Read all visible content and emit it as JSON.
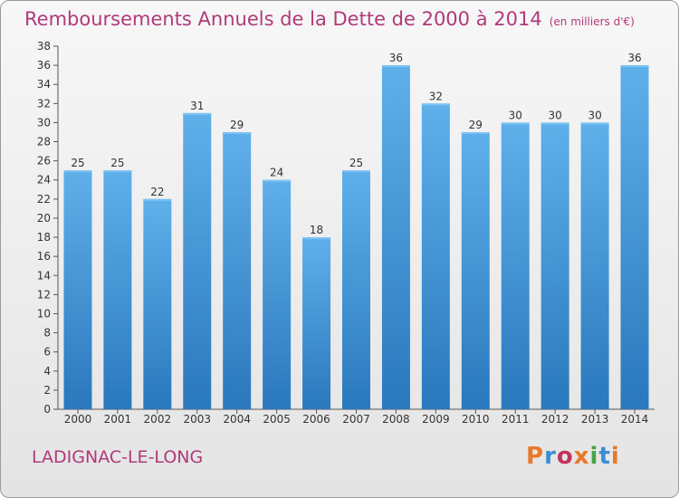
{
  "header": {
    "title": "Remboursements Annuels de la Dette de 2000 à 2014",
    "unit": "(en milliers d'€)"
  },
  "footer": {
    "city": "LADIGNAC-LE-LONG",
    "logo": "Proxiti"
  },
  "colors": {
    "title": "#b03a7a",
    "bar_top": "#5fb0ea",
    "bar_bottom": "#2a78bd",
    "logo_letters": [
      "#e8792a",
      "#3a8fd0",
      "#c2335f",
      "#e8792a",
      "#4aa34a",
      "#3a8fd0",
      "#e8792a"
    ]
  },
  "chart_data": {
    "type": "bar",
    "title": "Remboursements Annuels de la Dette de 2000 à 2014",
    "xlabel": "",
    "ylabel": "",
    "categories": [
      "2000",
      "2001",
      "2002",
      "2003",
      "2004",
      "2005",
      "2006",
      "2007",
      "2008",
      "2009",
      "2010",
      "2011",
      "2012",
      "2013",
      "2014"
    ],
    "values": [
      25,
      25,
      22,
      31,
      29,
      24,
      18,
      25,
      36,
      32,
      29,
      30,
      30,
      30,
      36
    ],
    "ylim": [
      0,
      38
    ],
    "yticks": [
      0,
      2,
      4,
      6,
      8,
      10,
      12,
      14,
      16,
      18,
      20,
      22,
      24,
      26,
      28,
      30,
      32,
      34,
      36,
      38
    ],
    "grid": false,
    "data_labels": true
  }
}
